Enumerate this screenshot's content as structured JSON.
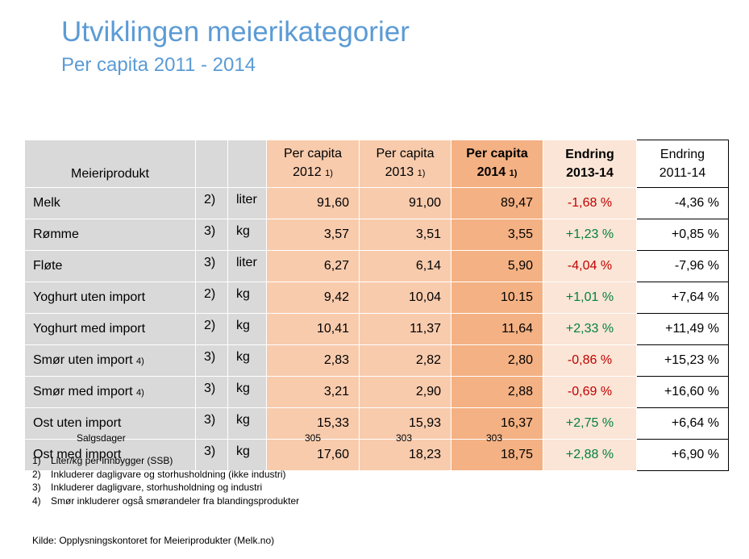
{
  "title": "Utviklingen meierikategorier",
  "subtitle": "Per capita 2011 - 2014",
  "table": {
    "headers": {
      "product": "Meieriprodukt",
      "pc2012_l1": "Per capita",
      "pc2012_l2": "2012",
      "pc2013_l1": "Per capita",
      "pc2013_l2": "2013",
      "pc2014_l1": "Per capita",
      "pc2014_l2": "2014",
      "footref": "1)",
      "ch1314_l1": "Endring",
      "ch1314_l2": "2013-14",
      "ch1114_l1": "Endring",
      "ch1114_l2": "2011-14"
    },
    "rows": [
      {
        "name": "Melk",
        "name_note": "",
        "note": "2)",
        "unit": "liter",
        "y2012": "91,60",
        "y2013": "91,00",
        "y2014": "89,47",
        "ch1314": "-1,68 %",
        "ch1114": "-4,36 %"
      },
      {
        "name": "Rømme",
        "name_note": "",
        "note": "3)",
        "unit": "kg",
        "y2012": "3,57",
        "y2013": "3,51",
        "y2014": "3,55",
        "ch1314": "+1,23 %",
        "ch1114": "+0,85 %"
      },
      {
        "name": "Fløte",
        "name_note": "",
        "note": "3)",
        "unit": "liter",
        "y2012": "6,27",
        "y2013": "6,14",
        "y2014": "5,90",
        "ch1314": "-4,04 %",
        "ch1114": "-7,96 %"
      },
      {
        "name": "Yoghurt uten import",
        "name_note": "",
        "note": "2)",
        "unit": "kg",
        "y2012": "9,42",
        "y2013": "10,04",
        "y2014": "10.15",
        "ch1314": "+1,01 %",
        "ch1114": "+7,64 %"
      },
      {
        "name": "Yoghurt med import",
        "name_note": "",
        "note": "2)",
        "unit": "kg",
        "y2012": "10,41",
        "y2013": "11,37",
        "y2014": "11,64",
        "ch1314": "+2,33 %",
        "ch1114": "+11,49 %"
      },
      {
        "name": "Smør uten import",
        "name_note": "4)",
        "note": "3)",
        "unit": "kg",
        "y2012": "2,83",
        "y2013": "2,82",
        "y2014": "2,80",
        "ch1314": "-0,86 %",
        "ch1114": "+15,23 %"
      },
      {
        "name": "Smør med import",
        "name_note": "4)",
        "note": "3)",
        "unit": "kg",
        "y2012": "3,21",
        "y2013": "2,90",
        "y2014": "2,88",
        "ch1314": "-0,69 %",
        "ch1114": "+16,60 %"
      },
      {
        "name": "Ost uten import",
        "name_note": "",
        "note": "3)",
        "unit": "kg",
        "y2012": "15,33",
        "y2013": "15,93",
        "y2014": "16,37",
        "ch1314": "+2,75 %",
        "ch1114": "+6,64 %"
      },
      {
        "name": "Ost med import",
        "name_note": "",
        "note": "3)",
        "unit": "kg",
        "y2012": "17,60",
        "y2013": "18,23",
        "y2014": "18,75",
        "ch1314": "+2,88 %",
        "ch1114": "+6,90 %"
      }
    ]
  },
  "sales_days": {
    "label": "Salgsdager",
    "y2012": "305",
    "y2013": "303",
    "y2014": "303"
  },
  "footnotes": [
    {
      "num": "1)",
      "text": "Liter/kg per innbygger (SSB)"
    },
    {
      "num": "2)",
      "text": "Inkluderer dagligvare og storhusholdning (ikke industri)"
    },
    {
      "num": "3)",
      "text": "Inkluderer dagligvare, storhusholdning og industri"
    },
    {
      "num": "4)",
      "text": "Smør inkluderer også smørandeler fra blandingsprodukter"
    }
  ],
  "source": "Kilde: Opplysningskontoret for Meieriprodukter (Melk.no)",
  "colors": {
    "title": "#5b9bd5",
    "negative": "#c00000",
    "positive": "#00823b",
    "grey": "#d9d9d9",
    "peach": "#f8cbad",
    "peach_dark": "#f4b183",
    "peach_light": "#fbe5d6"
  }
}
